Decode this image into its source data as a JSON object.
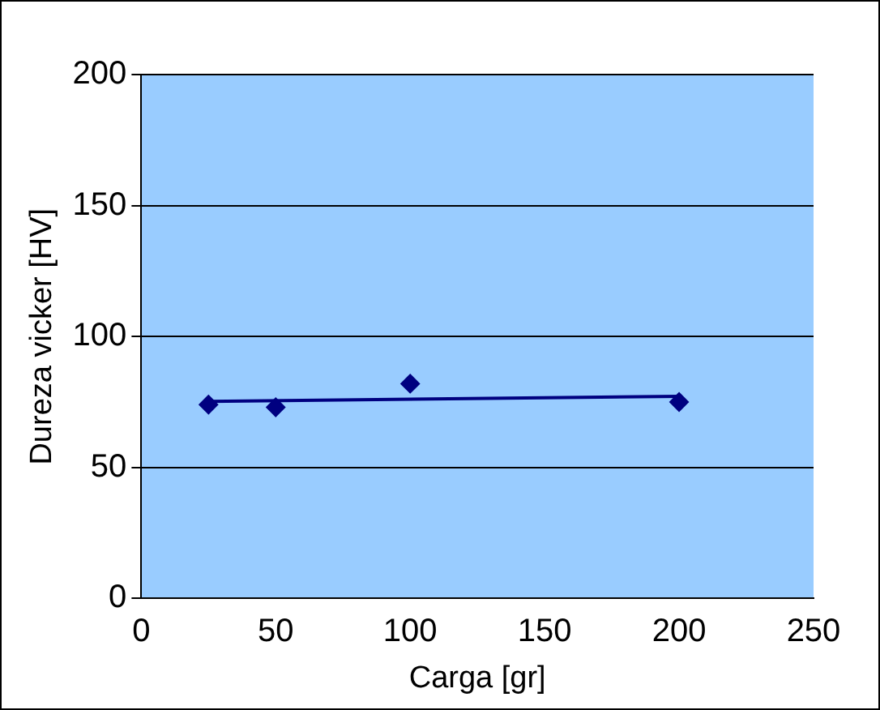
{
  "chart_data": {
    "type": "scatter",
    "xlabel": "Carga [gr]",
    "ylabel": "Dureza vicker [HV]",
    "xlim": [
      0,
      250
    ],
    "xticks": [
      0,
      50,
      100,
      150,
      200,
      250
    ],
    "ylim": [
      0,
      200
    ],
    "yticks": [
      0,
      50,
      100,
      150,
      200
    ],
    "grid": "y",
    "legend": false,
    "marker": "diamond",
    "series": [
      {
        "color": "#000080",
        "x": [
          25,
          50,
          100,
          200
        ],
        "values": [
          74,
          73,
          82,
          75
        ]
      },
      {
        "type": "line",
        "color": "#000080",
        "marker": "none",
        "line_style": "solid",
        "x": [
          25,
          200
        ],
        "values": [
          75.2,
          77.2
        ]
      }
    ]
  }
}
